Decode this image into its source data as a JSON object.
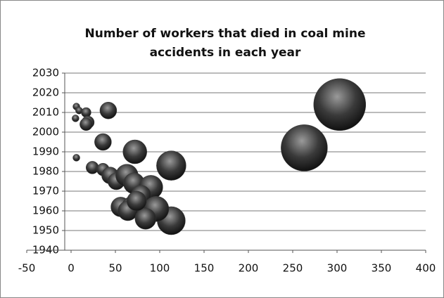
{
  "chart_data": {
    "type": "bubble",
    "title": "Number of workers that died in coal mine accidents in each year",
    "color": "#3a3a3a",
    "x": [
      303,
      263,
      113,
      113,
      72,
      42,
      36,
      6,
      9,
      5,
      17,
      19,
      17,
      6,
      24,
      36,
      44,
      51,
      63,
      71,
      90,
      79,
      56,
      69,
      64,
      96,
      84,
      74
    ],
    "y": [
      2014,
      1992,
      1955,
      1983,
      1990,
      2011,
      1995,
      2013,
      2011,
      2007,
      2010,
      2005,
      2004,
      1987,
      1982,
      1981,
      1978,
      1975,
      1978,
      1974,
      1972,
      1968,
      1962,
      1962,
      1960,
      1961,
      1956,
      1965
    ],
    "sizes": [
      37,
      33,
      20,
      21,
      17,
      12,
      12,
      5,
      5,
      5,
      7,
      9,
      9,
      5,
      9,
      9,
      12,
      12,
      16,
      15,
      17,
      14,
      14,
      15,
      14,
      18,
      15,
      14
    ],
    "xlim": [
      -50,
      400
    ],
    "xticks": [
      -50,
      0,
      50,
      100,
      150,
      200,
      250,
      300,
      350,
      400
    ],
    "ylim": [
      1940,
      2030
    ],
    "yticks": [
      1940,
      1950,
      1960,
      1970,
      1980,
      1990,
      2000,
      2010,
      2020,
      2030
    ],
    "grid": true
  }
}
